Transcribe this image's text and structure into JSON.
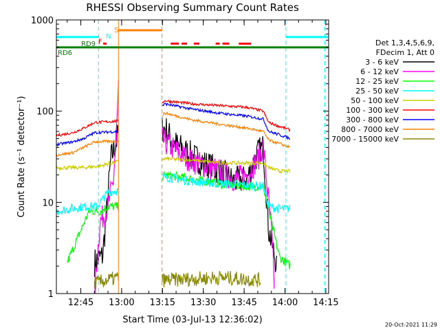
{
  "chart_data": {
    "type": "line",
    "title": "RHESSI Observing Summary Count Rates",
    "xlabel": "Start Time (03-Jul-13 12:36:02)",
    "ylabel": "Count Rate (s⁻¹ detector⁻¹)",
    "x_unit": "minutes after 12:36:02",
    "xlim": [
      0,
      100
    ],
    "ylim": [
      1,
      1000
    ],
    "y_scale": "log",
    "grid": false,
    "x_ticks": [
      {
        "x": 8.97,
        "label": "12:45"
      },
      {
        "x": 23.97,
        "label": "13:00"
      },
      {
        "x": 38.97,
        "label": "13:15"
      },
      {
        "x": 53.97,
        "label": "13:30"
      },
      {
        "x": 68.97,
        "label": "13:45"
      },
      {
        "x": 83.97,
        "label": "14:00"
      },
      {
        "x": 98.97,
        "label": "14:15"
      }
    ],
    "y_ticks": [
      {
        "y": 1,
        "label": "1"
      },
      {
        "y": 10,
        "label": "10"
      },
      {
        "y": 100,
        "label": "100"
      },
      {
        "y": 1000,
        "label": "1000"
      }
    ],
    "legend_header": [
      "Det 1,3,4,5,6,9,",
      "FDecim 1, Att 0"
    ],
    "legend_position": "right",
    "series": [
      {
        "name": "3 - 6 keV",
        "color": "#000000",
        "noise": 0.16,
        "points": [
          [
            14,
            2.2
          ],
          [
            17,
            2.6
          ],
          [
            18.5,
            8
          ],
          [
            20,
            30
          ],
          [
            22,
            45
          ],
          [
            22.8,
            60
          ],
          [
            40,
            65
          ],
          [
            43,
            45
          ],
          [
            50,
            32
          ],
          [
            55,
            26
          ],
          [
            60,
            22
          ],
          [
            65,
            17
          ],
          [
            70,
            18
          ],
          [
            74,
            35
          ],
          [
            76,
            40
          ],
          [
            78,
            5
          ],
          [
            81,
            2
          ]
        ]
      },
      {
        "name": "6 - 12 keV",
        "color": "#ff00ff",
        "noise": 0.14,
        "points": [
          [
            14,
            1
          ],
          [
            16,
            6
          ],
          [
            19,
            9
          ],
          [
            21,
            18
          ],
          [
            22.5,
            100
          ],
          [
            22.8,
            170
          ],
          [
            40,
            45
          ],
          [
            45,
            35
          ],
          [
            50,
            28
          ],
          [
            55,
            25
          ],
          [
            60,
            22
          ],
          [
            65,
            18
          ],
          [
            70,
            20
          ],
          [
            74,
            30
          ],
          [
            76,
            42
          ],
          [
            77.5,
            14
          ],
          [
            79,
            5
          ],
          [
            80,
            1.3
          ]
        ]
      },
      {
        "name": "12 - 25 keV",
        "color": "#00ff00",
        "noise": 0.05,
        "points": [
          [
            4,
            2.2
          ],
          [
            12,
            8
          ],
          [
            16,
            8
          ],
          [
            19,
            9
          ],
          [
            22.8,
            9
          ],
          [
            40,
            20
          ],
          [
            50,
            18
          ],
          [
            60,
            16
          ],
          [
            70,
            15
          ],
          [
            76,
            15
          ],
          [
            78,
            8
          ],
          [
            82,
            2.5
          ],
          [
            86,
            2
          ]
        ]
      },
      {
        "name": "25 - 50 keV",
        "color": "#00ffff",
        "noise": 0.05,
        "points": [
          [
            0,
            8
          ],
          [
            10,
            9
          ],
          [
            15,
            9
          ],
          [
            19,
            13
          ],
          [
            22.8,
            13.5
          ],
          [
            40,
            19
          ],
          [
            50,
            17
          ],
          [
            60,
            16
          ],
          [
            70,
            15.5
          ],
          [
            76,
            15
          ],
          [
            78,
            9
          ],
          [
            82,
            8.5
          ],
          [
            86,
            8.5
          ]
        ]
      },
      {
        "name": "50 - 100 keV",
        "color": "#cccc00",
        "noise": 0.02,
        "points": [
          [
            0,
            24
          ],
          [
            10,
            24
          ],
          [
            16,
            25
          ],
          [
            20,
            27
          ],
          [
            22.8,
            28
          ],
          [
            40,
            30
          ],
          [
            50,
            29
          ],
          [
            60,
            27
          ],
          [
            70,
            27
          ],
          [
            76,
            27
          ],
          [
            78,
            24
          ],
          [
            82,
            22
          ],
          [
            86,
            22
          ]
        ]
      },
      {
        "name": "100 - 300 keV",
        "color": "#ff0000",
        "noise": 0.015,
        "points": [
          [
            0,
            54
          ],
          [
            6,
            58
          ],
          [
            10,
            65
          ],
          [
            14,
            75
          ],
          [
            22.8,
            78
          ],
          [
            40,
            130
          ],
          [
            50,
            120
          ],
          [
            60,
            115
          ],
          [
            70,
            110
          ],
          [
            76,
            100
          ],
          [
            78,
            75
          ],
          [
            82,
            68
          ],
          [
            86,
            62
          ]
        ]
      },
      {
        "name": "300 - 800 keV",
        "color": "#0000ff",
        "noise": 0.015,
        "points": [
          [
            0,
            43
          ],
          [
            6,
            46
          ],
          [
            10,
            50
          ],
          [
            14,
            58
          ],
          [
            22.8,
            60
          ],
          [
            40,
            120
          ],
          [
            50,
            105
          ],
          [
            60,
            95
          ],
          [
            70,
            88
          ],
          [
            76,
            82
          ],
          [
            78,
            60
          ],
          [
            82,
            55
          ],
          [
            86,
            50
          ]
        ]
      },
      {
        "name": "800 - 7000 keV",
        "color": "#ff8000",
        "noise": 0.015,
        "points": [
          [
            0,
            33
          ],
          [
            6,
            35
          ],
          [
            10,
            40
          ],
          [
            14,
            46
          ],
          [
            22.8,
            47
          ],
          [
            40,
            95
          ],
          [
            50,
            80
          ],
          [
            60,
            72
          ],
          [
            70,
            65
          ],
          [
            76,
            60
          ],
          [
            78,
            48
          ],
          [
            82,
            44
          ],
          [
            86,
            40
          ]
        ]
      },
      {
        "name": "7000 - 15000 keV",
        "color": "#888800",
        "noise": 0.08,
        "points": [
          [
            14,
            1.3
          ],
          [
            22.8,
            1.5
          ],
          [
            40,
            1.4
          ],
          [
            60,
            1.5
          ],
          [
            75,
            1.4
          ]
        ]
      }
    ],
    "annotations": [
      {
        "label": "RD6",
        "color": "#008000"
      },
      {
        "label": "RD9",
        "color": "#008000"
      },
      {
        "label": "F",
        "color": "#ff0000"
      },
      {
        "label": "N",
        "color": "#00ffff"
      },
      {
        "label": "S",
        "color": "#ff8000"
      }
    ],
    "flag_levels": {
      "night_bar": 650,
      "saa_bar": 770,
      "flare_bar": 550,
      "decim_bar": 500
    },
    "night_intervals": [
      [
        0,
        15.5
      ],
      [
        84.3,
        100
      ]
    ],
    "saa_interval": [
      22.8,
      38.8
    ],
    "flare_segments": [
      [
        17.2,
        18.4
      ],
      [
        42,
        45
      ],
      [
        46,
        48
      ],
      [
        50.5,
        52.5
      ],
      [
        58.5,
        60
      ],
      [
        61,
        63.5
      ],
      [
        67,
        71.5
      ]
    ],
    "footer_timestamp": "20-Oct-2021 11:29"
  }
}
